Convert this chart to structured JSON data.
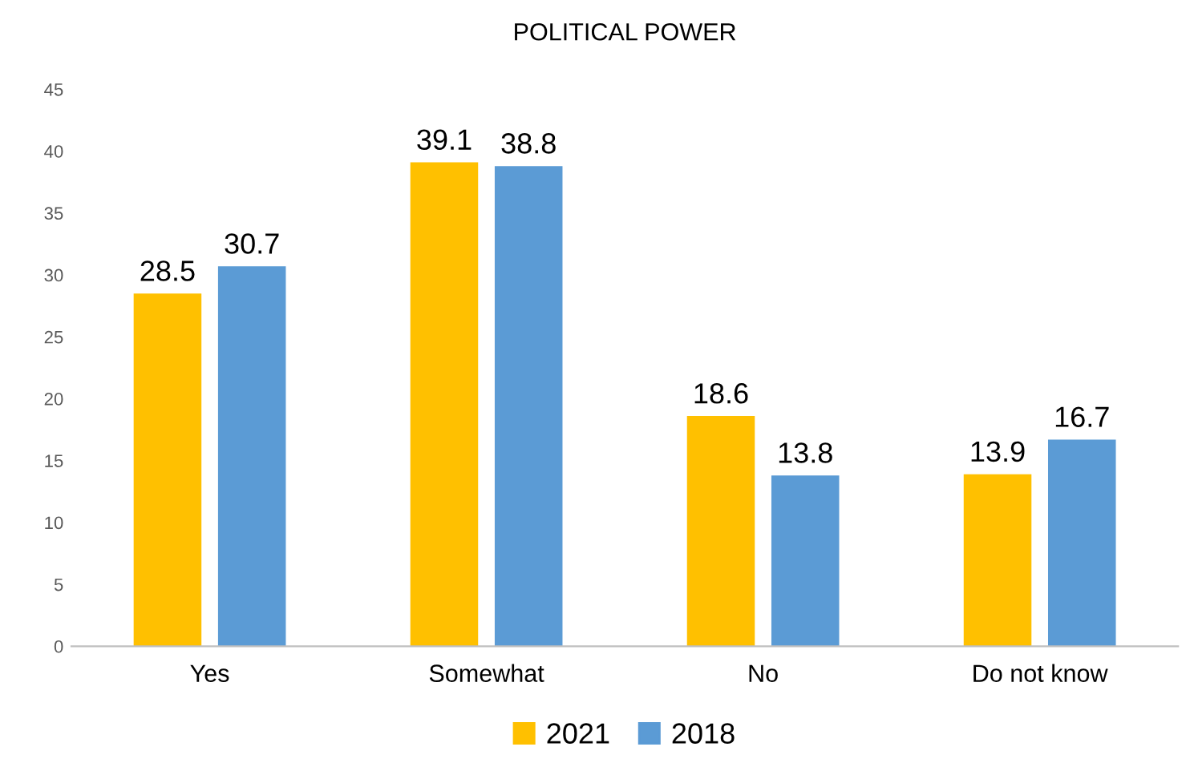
{
  "chart_data": {
    "type": "bar",
    "title": "POLITICAL POWER",
    "categories": [
      "Yes",
      "Somewhat",
      "No",
      "Do not know"
    ],
    "series": [
      {
        "name": "2021",
        "color": "#ffc000",
        "values": [
          28.5,
          39.1,
          18.6,
          13.9
        ]
      },
      {
        "name": "2018",
        "color": "#5b9bd5",
        "values": [
          30.7,
          38.8,
          13.8,
          16.7
        ]
      }
    ],
    "ylim": [
      0,
      45
    ],
    "yticks": [
      0,
      5,
      10,
      15,
      20,
      25,
      30,
      35,
      40,
      45
    ],
    "grid": false,
    "legend": "bottom",
    "data_labels": true
  }
}
